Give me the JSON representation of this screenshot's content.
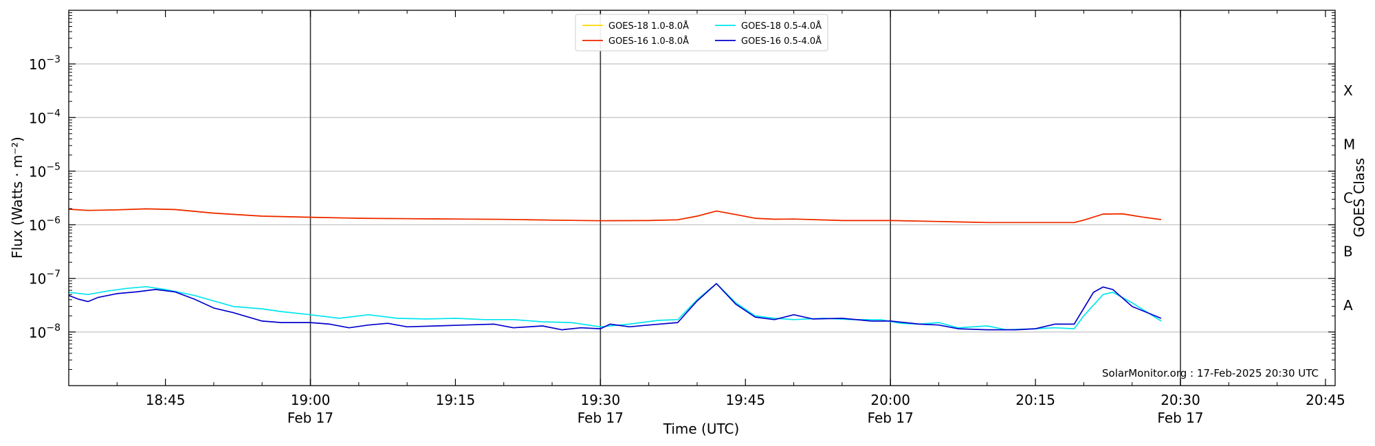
{
  "chart_data": {
    "type": "line",
    "ylabel": "Flux (Watts · m⁻²)",
    "xlabel": "Time (UTC)",
    "y2label": "GOES Class",
    "y_scale": "log",
    "ylim": [
      1e-09,
      0.01
    ],
    "xlim": [
      "18:35",
      "20:46"
    ],
    "grid": "horizontal",
    "legend_position": "top-center",
    "annotation": "SolarMonitor.org : 17-Feb-2025 20:30 UTC",
    "x_ticks": [
      {
        "t": "18:45",
        "label": "18:45",
        "sublabel": ""
      },
      {
        "t": "19:00",
        "label": "19:00",
        "sublabel": "Feb 17"
      },
      {
        "t": "19:15",
        "label": "19:15",
        "sublabel": ""
      },
      {
        "t": "19:30",
        "label": "19:30",
        "sublabel": "Feb 17"
      },
      {
        "t": "19:45",
        "label": "19:45",
        "sublabel": ""
      },
      {
        "t": "20:00",
        "label": "20:00",
        "sublabel": "Feb 17"
      },
      {
        "t": "20:15",
        "label": "20:15",
        "sublabel": ""
      },
      {
        "t": "20:30",
        "label": "20:30",
        "sublabel": "Feb 17"
      },
      {
        "t": "20:45",
        "label": "20:45",
        "sublabel": ""
      }
    ],
    "vlines": [
      "19:00",
      "19:30",
      "20:00",
      "20:30"
    ],
    "y_ticks": [
      {
        "value": 1e-08,
        "base": "10",
        "exp": "−8"
      },
      {
        "value": 1e-07,
        "base": "10",
        "exp": "−7"
      },
      {
        "value": 1e-06,
        "base": "10",
        "exp": "−6"
      },
      {
        "value": 1e-05,
        "base": "10",
        "exp": "−5"
      },
      {
        "value": 0.0001,
        "base": "10",
        "exp": "−4"
      },
      {
        "value": 0.001,
        "base": "10",
        "exp": "−3"
      }
    ],
    "goes_classes": [
      {
        "label": "A",
        "value": 3.16e-08
      },
      {
        "label": "B",
        "value": 3.16e-07
      },
      {
        "label": "C",
        "value": 3.16e-06
      },
      {
        "label": "M",
        "value": 3.16e-05
      },
      {
        "label": "X",
        "value": 0.000316
      }
    ],
    "series": [
      {
        "name": "GOES-18 1.0-8.0Å",
        "color": "#ffd700",
        "points": [
          [
            "18:35",
            1.95e-06
          ],
          [
            "18:37",
            1.85e-06
          ],
          [
            "18:40",
            1.9e-06
          ],
          [
            "18:43",
            1.98e-06
          ],
          [
            "18:46",
            1.92e-06
          ],
          [
            "18:50",
            1.65e-06
          ],
          [
            "18:55",
            1.45e-06
          ],
          [
            "19:00",
            1.38e-06
          ],
          [
            "19:05",
            1.32e-06
          ],
          [
            "19:10",
            1.3e-06
          ],
          [
            "19:15",
            1.28e-06
          ],
          [
            "19:20",
            1.26e-06
          ],
          [
            "19:25",
            1.22e-06
          ],
          [
            "19:30",
            1.19e-06
          ],
          [
            "19:35",
            1.2e-06
          ],
          [
            "19:38",
            1.24e-06
          ],
          [
            "19:40",
            1.45e-06
          ],
          [
            "19:42",
            1.8e-06
          ],
          [
            "19:44",
            1.55e-06
          ],
          [
            "19:46",
            1.32e-06
          ],
          [
            "19:48",
            1.27e-06
          ],
          [
            "19:50",
            1.28e-06
          ],
          [
            "19:55",
            1.2e-06
          ],
          [
            "20:00",
            1.2e-06
          ],
          [
            "20:05",
            1.15e-06
          ],
          [
            "20:10",
            1.1e-06
          ],
          [
            "20:15",
            1.1e-06
          ],
          [
            "20:19",
            1.1e-06
          ],
          [
            "20:20",
            1.22e-06
          ],
          [
            "20:22",
            1.58e-06
          ],
          [
            "20:24",
            1.6e-06
          ],
          [
            "20:26",
            1.4e-06
          ],
          [
            "20:28",
            1.25e-06
          ]
        ]
      },
      {
        "name": "GOES-16 1.0-8.0Å",
        "color": "#ee2200",
        "points": [
          [
            "18:35",
            1.95e-06
          ],
          [
            "18:37",
            1.85e-06
          ],
          [
            "18:40",
            1.9e-06
          ],
          [
            "18:43",
            1.98e-06
          ],
          [
            "18:46",
            1.92e-06
          ],
          [
            "18:50",
            1.65e-06
          ],
          [
            "18:55",
            1.45e-06
          ],
          [
            "19:00",
            1.38e-06
          ],
          [
            "19:05",
            1.32e-06
          ],
          [
            "19:10",
            1.3e-06
          ],
          [
            "19:15",
            1.28e-06
          ],
          [
            "19:20",
            1.26e-06
          ],
          [
            "19:25",
            1.22e-06
          ],
          [
            "19:30",
            1.19e-06
          ],
          [
            "19:35",
            1.2e-06
          ],
          [
            "19:38",
            1.24e-06
          ],
          [
            "19:40",
            1.45e-06
          ],
          [
            "19:42",
            1.8e-06
          ],
          [
            "19:44",
            1.55e-06
          ],
          [
            "19:46",
            1.32e-06
          ],
          [
            "19:48",
            1.27e-06
          ],
          [
            "19:50",
            1.28e-06
          ],
          [
            "19:55",
            1.2e-06
          ],
          [
            "20:00",
            1.2e-06
          ],
          [
            "20:05",
            1.15e-06
          ],
          [
            "20:10",
            1.1e-06
          ],
          [
            "20:15",
            1.1e-06
          ],
          [
            "20:19",
            1.1e-06
          ],
          [
            "20:20",
            1.22e-06
          ],
          [
            "20:22",
            1.58e-06
          ],
          [
            "20:24",
            1.6e-06
          ],
          [
            "20:26",
            1.4e-06
          ],
          [
            "20:28",
            1.25e-06
          ]
        ]
      },
      {
        "name": "GOES-18 0.5-4.0Å",
        "color": "#00e5ee",
        "points": [
          [
            "18:35",
            5.5e-08
          ],
          [
            "18:37",
            5e-08
          ],
          [
            "18:39",
            5.8e-08
          ],
          [
            "18:41",
            6.5e-08
          ],
          [
            "18:43",
            7e-08
          ],
          [
            "18:45",
            6.2e-08
          ],
          [
            "18:48",
            4.8e-08
          ],
          [
            "18:50",
            3.8e-08
          ],
          [
            "18:52",
            3e-08
          ],
          [
            "18:55",
            2.7e-08
          ],
          [
            "18:57",
            2.4e-08
          ],
          [
            "19:00",
            2.1e-08
          ],
          [
            "19:03",
            1.8e-08
          ],
          [
            "19:06",
            2.1e-08
          ],
          [
            "19:09",
            1.8e-08
          ],
          [
            "19:12",
            1.75e-08
          ],
          [
            "19:15",
            1.8e-08
          ],
          [
            "19:18",
            1.7e-08
          ],
          [
            "19:21",
            1.7e-08
          ],
          [
            "19:24",
            1.55e-08
          ],
          [
            "19:27",
            1.5e-08
          ],
          [
            "19:30",
            1.25e-08
          ],
          [
            "19:33",
            1.4e-08
          ],
          [
            "19:36",
            1.65e-08
          ],
          [
            "19:38",
            1.7e-08
          ],
          [
            "19:40",
            4e-08
          ],
          [
            "19:42",
            8e-08
          ],
          [
            "19:44",
            3.5e-08
          ],
          [
            "19:46",
            2e-08
          ],
          [
            "19:48",
            1.8e-08
          ],
          [
            "19:50",
            1.7e-08
          ],
          [
            "19:53",
            1.8e-08
          ],
          [
            "19:56",
            1.7e-08
          ],
          [
            "19:59",
            1.7e-08
          ],
          [
            "20:01",
            1.45e-08
          ],
          [
            "20:03",
            1.4e-08
          ],
          [
            "20:05",
            1.5e-08
          ],
          [
            "20:07",
            1.2e-08
          ],
          [
            "20:10",
            1.3e-08
          ],
          [
            "20:12",
            1.1e-08
          ],
          [
            "20:15",
            1.15e-08
          ],
          [
            "20:17",
            1.2e-08
          ],
          [
            "20:19",
            1.15e-08
          ],
          [
            "20:20",
            2e-08
          ],
          [
            "20:22",
            5e-08
          ],
          [
            "20:23",
            5.5e-08
          ],
          [
            "20:25",
            3.5e-08
          ],
          [
            "20:28",
            1.6e-08
          ]
        ]
      },
      {
        "name": "GOES-16 0.5-4.0Å",
        "color": "#0000cc",
        "points": [
          [
            "18:35",
            4.8e-08
          ],
          [
            "18:36",
            4.1e-08
          ],
          [
            "18:37",
            3.7e-08
          ],
          [
            "18:38",
            4.4e-08
          ],
          [
            "18:40",
            5.2e-08
          ],
          [
            "18:42",
            5.6e-08
          ],
          [
            "18:44",
            6.2e-08
          ],
          [
            "18:46",
            5.6e-08
          ],
          [
            "18:48",
            4.1e-08
          ],
          [
            "18:50",
            2.8e-08
          ],
          [
            "18:52",
            2.3e-08
          ],
          [
            "18:55",
            1.6e-08
          ],
          [
            "18:57",
            1.5e-08
          ],
          [
            "19:00",
            1.5e-08
          ],
          [
            "19:02",
            1.4e-08
          ],
          [
            "19:04",
            1.2e-08
          ],
          [
            "19:06",
            1.35e-08
          ],
          [
            "19:08",
            1.45e-08
          ],
          [
            "19:10",
            1.25e-08
          ],
          [
            "19:13",
            1.3e-08
          ],
          [
            "19:16",
            1.35e-08
          ],
          [
            "19:19",
            1.4e-08
          ],
          [
            "19:21",
            1.2e-08
          ],
          [
            "19:24",
            1.3e-08
          ],
          [
            "19:26",
            1.1e-08
          ],
          [
            "19:28",
            1.2e-08
          ],
          [
            "19:30",
            1.15e-08
          ],
          [
            "19:31",
            1.4e-08
          ],
          [
            "19:33",
            1.25e-08
          ],
          [
            "19:35",
            1.35e-08
          ],
          [
            "19:38",
            1.5e-08
          ],
          [
            "19:40",
            3.8e-08
          ],
          [
            "19:42",
            8e-08
          ],
          [
            "19:44",
            3.3e-08
          ],
          [
            "19:46",
            1.9e-08
          ],
          [
            "19:48",
            1.7e-08
          ],
          [
            "19:50",
            2.1e-08
          ],
          [
            "19:52",
            1.75e-08
          ],
          [
            "19:55",
            1.8e-08
          ],
          [
            "19:58",
            1.6e-08
          ],
          [
            "20:00",
            1.6e-08
          ],
          [
            "20:03",
            1.4e-08
          ],
          [
            "20:05",
            1.35e-08
          ],
          [
            "20:07",
            1.15e-08
          ],
          [
            "20:10",
            1.1e-08
          ],
          [
            "20:13",
            1.1e-08
          ],
          [
            "20:15",
            1.15e-08
          ],
          [
            "20:17",
            1.4e-08
          ],
          [
            "20:19",
            1.4e-08
          ],
          [
            "20:21",
            5.5e-08
          ],
          [
            "20:22",
            6.9e-08
          ],
          [
            "20:23",
            6.2e-08
          ],
          [
            "20:25",
            3e-08
          ],
          [
            "20:28",
            1.8e-08
          ]
        ]
      }
    ]
  }
}
